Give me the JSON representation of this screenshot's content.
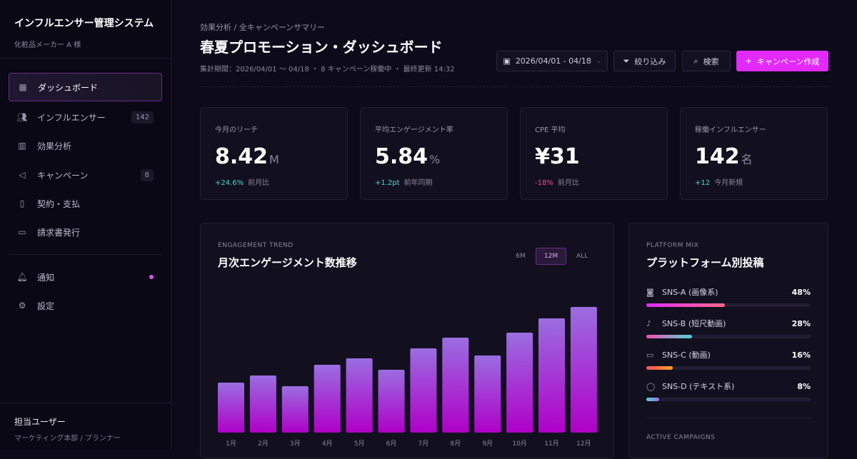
{
  "app": {
    "title": "インフルエンサー管理システム",
    "client": "化粧品メーカー A 様"
  },
  "sidebar": {
    "items": [
      {
        "label": "ダッシュボード",
        "icon": "grid-icon",
        "active": true
      },
      {
        "label": "インフルエンサー",
        "icon": "users-icon",
        "badge": "142"
      },
      {
        "label": "効果分析",
        "icon": "bar-chart-icon"
      },
      {
        "label": "キャンペーン",
        "icon": "megaphone-icon",
        "badge": "8"
      },
      {
        "label": "契約・支払",
        "icon": "document-icon"
      },
      {
        "label": "請求書発行",
        "icon": "credit-card-icon"
      }
    ],
    "secondary": [
      {
        "label": "通知",
        "icon": "bell-icon",
        "dot": true
      },
      {
        "label": "設定",
        "icon": "gear-icon"
      }
    ],
    "user": {
      "name": "担当ユーザー",
      "role": "マーケティング本部 / プランナー"
    }
  },
  "header": {
    "breadcrumb": "効果分析 / 全キャンペーンサマリー",
    "title": "春夏プロモーション・ダッシュボード",
    "meta": "集計期間：2026/04/01 〜 04/18 ・ 8 キャンペーン稼働中 ・ 最終更新 14:32",
    "date_range": "2026/04/01 - 04/18",
    "filter": "絞り込み",
    "search": "検索",
    "create": "キャンペーン作成"
  },
  "kpis": [
    {
      "label": "今月のリーチ",
      "value": "8.42",
      "unit": "M",
      "delta": "+24.6%",
      "delta_dir": "up",
      "note": "前月比"
    },
    {
      "label": "平均エンゲージメント率",
      "value": "5.84",
      "unit": "%",
      "delta": "+1.2pt",
      "delta_dir": "up",
      "note": "前年同期"
    },
    {
      "label": "CPE 平均",
      "value": "¥31",
      "unit": "",
      "delta": "-18%",
      "delta_dir": "down",
      "note": "前月比"
    },
    {
      "label": "稼働インフルエンサー",
      "value": "142",
      "unit": "名",
      "delta": "+12",
      "delta_dir": "up",
      "note": "今月新規"
    }
  ],
  "trend": {
    "eyebrow": "ENGAGEMENT TREND",
    "title": "月次エンゲージメント数推移",
    "ranges": [
      "6M",
      "12M",
      "ALL"
    ],
    "selected": "12M"
  },
  "chart_data": {
    "type": "bar",
    "categories": [
      "1月",
      "2月",
      "3月",
      "4月",
      "5月",
      "6月",
      "7月",
      "8月",
      "9月",
      "10月",
      "11月",
      "12月"
    ],
    "values": [
      70,
      80,
      65,
      95,
      104,
      88,
      118,
      133,
      108,
      140,
      160,
      176
    ],
    "colors": [
      "#9a6ee0",
      "#b000c8"
    ]
  },
  "platform": {
    "eyebrow": "PLATFORM MIX",
    "title": "プラットフォーム別投稿",
    "items": [
      {
        "label": "SNS-A (画像系)",
        "pct": "48%",
        "value": 48,
        "icon": "camera-icon",
        "grad": [
          "#e12afb",
          "#ff6a88"
        ]
      },
      {
        "label": "SNS-B (短尺動画)",
        "pct": "28%",
        "value": 28,
        "icon": "music-note-icon",
        "grad": [
          "#f04fb0",
          "#4fd6dc"
        ]
      },
      {
        "label": "SNS-C (動画)",
        "pct": "16%",
        "value": 16,
        "icon": "video-icon",
        "grad": [
          "#ff4f60",
          "#ffa020"
        ]
      },
      {
        "label": "SNS-D (テキスト系)",
        "pct": "8%",
        "value": 8,
        "icon": "chat-bubble-icon",
        "grad": [
          "#4fd6dc",
          "#9a6ee0"
        ]
      }
    ],
    "active_label": "ACTIVE CAMPAIGNS"
  }
}
